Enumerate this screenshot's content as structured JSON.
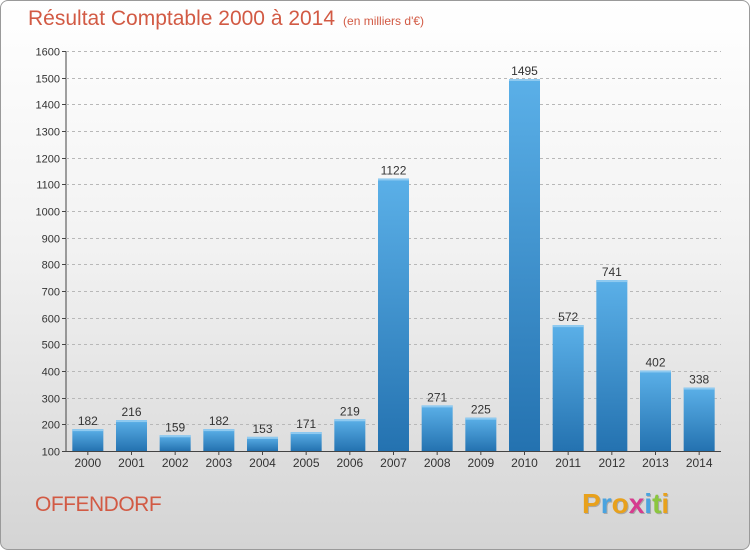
{
  "header": {
    "title": "Résultat Comptable 2000 à 2014",
    "unit": "(en milliers d'€)"
  },
  "footer": {
    "commune": "OFFENDORF",
    "logo_letters": [
      "P",
      "r",
      "o",
      "x",
      "i",
      "t",
      "i"
    ],
    "logo_colors": [
      "#e8a11c",
      "#4aa3df",
      "#e8a11c",
      "#d63c8f",
      "#4aa3df",
      "#8cc63f",
      "#e8a11c"
    ]
  },
  "colors": {
    "bar_light": "#5bb0e8",
    "bar_dark": "#2472b0",
    "title": "#d25a44"
  },
  "chart_data": {
    "type": "bar",
    "title": "Résultat Comptable 2000 à 2014",
    "subtitle": "(en milliers d'€)",
    "categories": [
      "2000",
      "2001",
      "2002",
      "2003",
      "2004",
      "2005",
      "2006",
      "2007",
      "2008",
      "2009",
      "2010",
      "2011",
      "2012",
      "2013",
      "2014"
    ],
    "values": [
      182,
      216,
      159,
      182,
      153,
      171,
      219,
      1122,
      271,
      225,
      1495,
      572,
      741,
      402,
      338
    ],
    "ylim": [
      100,
      1600
    ],
    "yticks": [
      100,
      200,
      300,
      400,
      500,
      600,
      700,
      800,
      900,
      1000,
      1100,
      1200,
      1300,
      1400,
      1500,
      1600
    ],
    "grid": "horizontal dashed",
    "legend": "none"
  }
}
